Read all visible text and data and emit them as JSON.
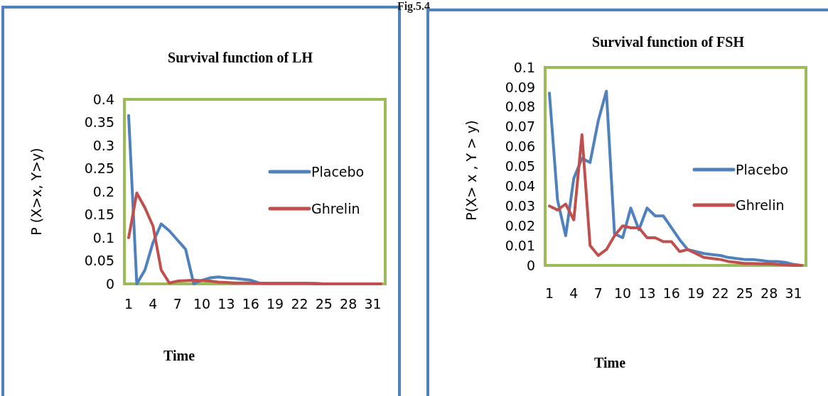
{
  "chart_data": [
    {
      "type": "line",
      "title": "Survival function of LH",
      "xlabel": "Time",
      "ylabel": "P (X>x, Y>y)",
      "annotations": [
        "Fig.5.4"
      ],
      "legend": "right",
      "grid": false,
      "categories": [
        "1",
        null,
        null,
        "4",
        null,
        null,
        "7",
        null,
        null,
        "10",
        null,
        null,
        "13",
        null,
        null,
        "16",
        null,
        null,
        "19",
        null,
        null,
        "22",
        null,
        null,
        "25",
        null,
        null,
        "28",
        null,
        null,
        "31",
        null
      ],
      "ylim": [
        0,
        0.4
      ],
      "yticks": [
        0,
        0.05,
        0.1,
        0.15,
        0.2,
        0.25,
        0.3,
        0.35,
        0.4
      ],
      "series": [
        {
          "name": "Placebo",
          "color": "#4f81bd",
          "values": [
            0.365,
            0,
            0.03,
            0.09,
            0.13,
            0.115,
            0.095,
            0.075,
            0,
            0.008,
            0.013,
            0.015,
            0.013,
            0.012,
            0.01,
            0.008,
            0.002,
            0.001,
            0.001,
            0.001,
            0.001,
            0.001,
            0.001,
            0.001,
            0,
            0,
            null,
            null,
            null,
            null,
            null,
            null
          ]
        },
        {
          "name": "Ghrelin",
          "color": "#c0504d",
          "values": [
            0.1,
            0.197,
            0.165,
            0.125,
            0.03,
            0.002,
            0.006,
            0.007,
            0.008,
            0.007,
            0.006,
            0.004,
            0.003,
            0.002,
            0.002,
            0.002,
            0.001,
            0.001,
            0.001,
            0.001,
            0.001,
            0.001,
            0.001,
            0,
            0,
            0,
            0,
            0,
            0,
            0,
            0,
            0
          ]
        }
      ]
    },
    {
      "type": "line",
      "title": "Survival function of FSH",
      "xlabel": "Time",
      "ylabel": "P(X> x , Y > y)",
      "legend": "right",
      "grid": false,
      "categories": [
        "1",
        null,
        null,
        "4",
        null,
        null,
        "7",
        null,
        null,
        "10",
        null,
        null,
        "13",
        null,
        null,
        "16",
        null,
        null,
        "19",
        null,
        null,
        "22",
        null,
        null,
        "25",
        null,
        null,
        "28",
        null,
        null,
        "31",
        null
      ],
      "ylim": [
        0,
        0.1
      ],
      "yticks": [
        0,
        0.01,
        0.02,
        0.03,
        0.04,
        0.05,
        0.06,
        0.07,
        0.08,
        0.09,
        0.1
      ],
      "series": [
        {
          "name": "Placebo",
          "color": "#4f81bd",
          "values": [
            0.087,
            0.033,
            0.015,
            0.044,
            0.054,
            0.052,
            0.073,
            0.088,
            0.016,
            0.014,
            0.029,
            0.018,
            0.029,
            0.025,
            0.025,
            0.019,
            0.013,
            0.008,
            0.007,
            0.006,
            0.0055,
            0.005,
            0.004,
            0.0035,
            0.003,
            0.003,
            0.0025,
            0.002,
            0.002,
            0.0015,
            0.0005,
            0
          ]
        },
        {
          "name": "Ghrelin",
          "color": "#c0504d",
          "values": [
            0.03,
            0.028,
            0.031,
            0.023,
            0.066,
            0.01,
            0.005,
            0.008,
            0.015,
            0.02,
            0.019,
            0.019,
            0.014,
            0.014,
            0.012,
            0.012,
            0.007,
            0.008,
            0.006,
            0.004,
            0.0035,
            0.003,
            0.002,
            0.0015,
            0.001,
            0.001,
            0.0008,
            0.0008,
            0.0005,
            0.0003,
            0,
            0
          ]
        }
      ]
    }
  ]
}
